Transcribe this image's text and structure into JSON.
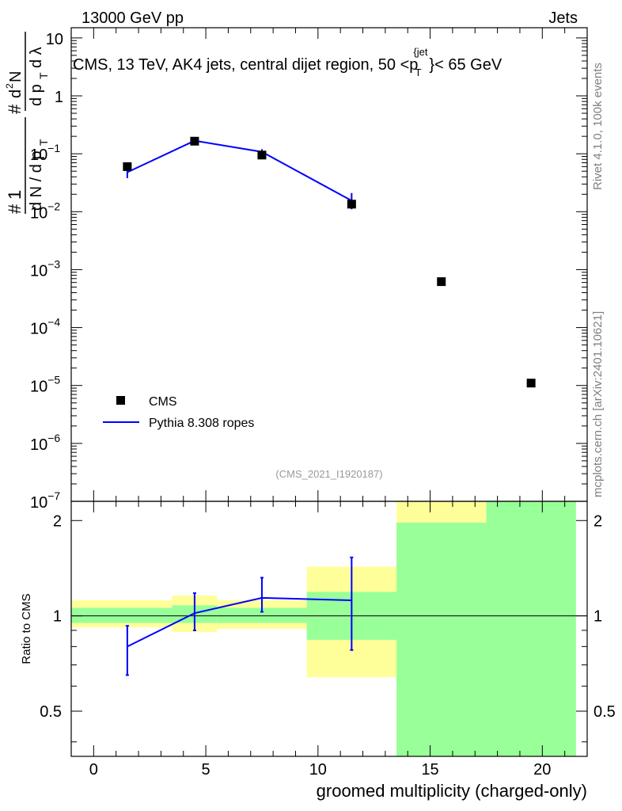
{
  "header": {
    "left": "13000 GeV pp",
    "right": "Jets",
    "plot_title": "CMS, 13 TeV, AK4 jets, central dijet region, 50 <p",
    "plot_title_sup": "{jet",
    "plot_title_sub": "T",
    "plot_title_end": "}< 65 GeV"
  },
  "side_labels": {
    "rivet": "Rivet 4.1.0,  100k events",
    "mcplots": "mcplots.cern.ch [arXiv:2401.10621]"
  },
  "ylabel_top": {
    "hash": "#",
    "one": "1",
    "denominator": "d N / d p",
    "sub": "T",
    "d2n": "d",
    "sup2": "2",
    "n": "N",
    "dpt": "d p",
    "dlambda": "d λ"
  },
  "watermark": "(CMS_2021_I1920187)",
  "legend": [
    {
      "label": "CMS",
      "marker": "square"
    },
    {
      "label": "Pythia 8.308 ropes",
      "marker": "line"
    }
  ],
  "ratio_ylabel": "Ratio to CMS",
  "xlabel": "groomed multiplicity (charged-only)",
  "colors": {
    "data": "#000000",
    "mc": "#0000ff",
    "band_inner": "#99ff99",
    "band_outer": "#ffff99",
    "axis": "#000000"
  },
  "chart_data": {
    "type": "scatter",
    "title": "CMS, 13 TeV, AK4 jets, central dijet region, 50 < pT jet < 65 GeV",
    "xlabel": "groomed multiplicity (charged-only)",
    "ylabel": "1/dN/dpT d2N/dpT dλ",
    "xlim": [
      -1,
      22
    ],
    "ylim": [
      1e-07,
      15
    ],
    "yscale": "log",
    "x_ticks": [
      0,
      5,
      10,
      15,
      20
    ],
    "y_ticks_log": [
      {
        "exp": -7,
        "label": "10",
        "sup": "−7"
      },
      {
        "exp": -6,
        "label": "10",
        "sup": "−6"
      },
      {
        "exp": -5,
        "label": "10",
        "sup": "−5"
      },
      {
        "exp": -4,
        "label": "10",
        "sup": "−4"
      },
      {
        "exp": -3,
        "label": "10",
        "sup": "−3"
      },
      {
        "exp": -2,
        "label": "10",
        "sup": "−2"
      },
      {
        "exp": -1,
        "label": "10",
        "sup": "−1"
      },
      {
        "exp": 0,
        "label": "1",
        "sup": ""
      },
      {
        "exp": 1,
        "label": "10",
        "sup": ""
      }
    ],
    "bins": [
      [
        -1,
        3.5
      ],
      [
        3.5,
        5.5
      ],
      [
        5.5,
        9.5
      ],
      [
        9.5,
        13.5
      ],
      [
        13.5,
        17.5
      ],
      [
        17.5,
        21.5
      ]
    ],
    "series": [
      {
        "name": "CMS",
        "x": [
          1.5,
          4.5,
          7.5,
          11.5,
          15.5,
          19.5
        ],
        "y": [
          0.06,
          0.165,
          0.095,
          0.0135,
          0.00062,
          1.1e-05
        ]
      },
      {
        "name": "Pythia 8.308 ropes",
        "x": [
          1.5,
          4.5,
          7.5,
          11.5
        ],
        "y": [
          0.048,
          0.168,
          0.108,
          0.0155
        ],
        "y_low": [
          0.038,
          0.155,
          0.095,
          0.011
        ],
        "y_high": [
          0.057,
          0.18,
          0.12,
          0.021
        ]
      }
    ],
    "ratio": {
      "ylabel": "Ratio to CMS",
      "ylim": [
        0.36,
        2.3
      ],
      "y_ticks": [
        0.5,
        1,
        2
      ],
      "reference": 1.0,
      "band_inner": [
        [
          0.95,
          1.06
        ],
        [
          0.95,
          1.08
        ],
        [
          0.95,
          1.06
        ],
        [
          0.84,
          1.19
        ],
        [
          0.36,
          1.97
        ],
        [
          0.36,
          2.3
        ]
      ],
      "band_outer": [
        [
          0.92,
          1.12
        ],
        [
          0.89,
          1.16
        ],
        [
          0.91,
          1.12
        ],
        [
          0.64,
          1.43
        ],
        [
          0.36,
          2.3
        ],
        [
          0.36,
          2.3
        ]
      ],
      "mc_ratio": [
        0.8,
        1.02,
        1.14,
        1.12
      ],
      "mc_ratio_low": [
        0.65,
        0.9,
        1.03,
        0.78
      ],
      "mc_ratio_high": [
        0.93,
        1.18,
        1.32,
        1.53
      ]
    }
  }
}
